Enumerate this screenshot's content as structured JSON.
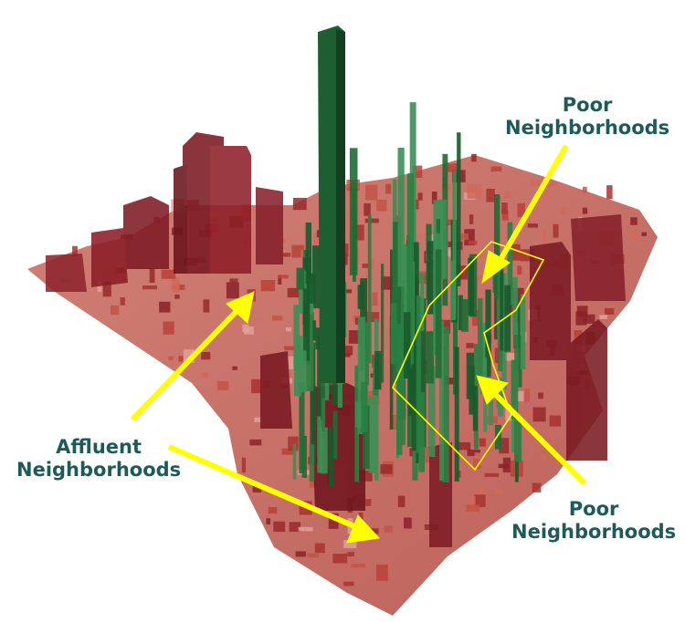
{
  "annotations": {
    "poor_top": [
      "Poor",
      "Neighborhoods"
    ],
    "poor_bottom": [
      "Poor",
      "Neighborhoods"
    ],
    "affluent": [
      "Affluent",
      "Neighborhoods"
    ]
  },
  "colors": {
    "affluent_bar": "#8b1e26",
    "affluent_bar_light": "#c0453e",
    "poor_bar": "#1f6b35",
    "arrow": "#ffff00",
    "outline": "#ffff00",
    "label_text": "#1f5a5a"
  }
}
